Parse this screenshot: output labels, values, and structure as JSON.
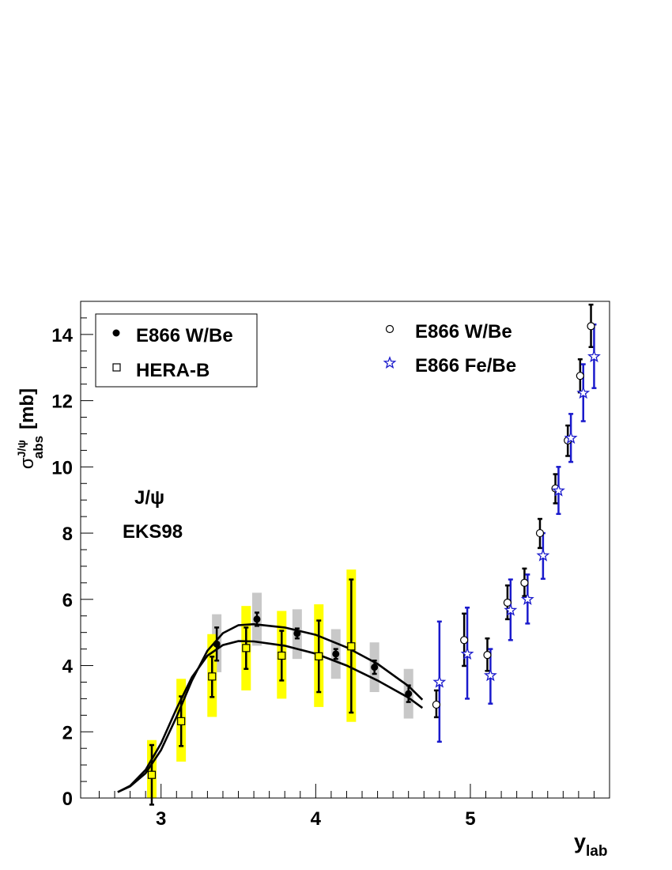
{
  "chart_data": {
    "type": "scatter",
    "xlabel": "y",
    "xlabel_sub": "lab",
    "ylabel_sym": "σ",
    "ylabel_sup": "J/ψ",
    "ylabel_sub": "abs",
    "ylabel_unit": "[mb]",
    "xlim": [
      2.48,
      5.9
    ],
    "ylim": [
      0,
      15
    ],
    "xticks": [
      3,
      4,
      5
    ],
    "yticks": [
      0,
      2,
      4,
      6,
      8,
      10,
      12,
      14
    ],
    "annotation_line1": "J/ψ",
    "annotation_line2": "EKS98",
    "legend_left": [
      {
        "marker": "filled-circle",
        "label": "E866 W/Be"
      },
      {
        "marker": "open-square",
        "label": "HERA-B"
      }
    ],
    "legend_right": [
      {
        "marker": "open-circle",
        "label": "E866 W/Be"
      },
      {
        "marker": "open-star",
        "label": "E866 Fe/Be"
      }
    ],
    "series": [
      {
        "name": "E866 W/Be",
        "marker": "filled-circle",
        "color": "#000000",
        "points": [
          {
            "x": 3.36,
            "y": 4.65,
            "err": 0.5,
            "sys_lo": 3.8,
            "sys_hi": 5.55
          },
          {
            "x": 3.62,
            "y": 5.4,
            "err": 0.2,
            "sys_lo": 4.6,
            "sys_hi": 6.2
          },
          {
            "x": 3.88,
            "y": 4.97,
            "err": 0.15,
            "sys_lo": 4.2,
            "sys_hi": 5.7
          },
          {
            "x": 4.13,
            "y": 4.35,
            "err": 0.15,
            "sys_lo": 3.6,
            "sys_hi": 5.1
          },
          {
            "x": 4.38,
            "y": 3.95,
            "err": 0.2,
            "sys_lo": 3.2,
            "sys_hi": 4.7
          },
          {
            "x": 4.6,
            "y": 3.15,
            "err": 0.25,
            "sys_lo": 2.4,
            "sys_hi": 3.9
          }
        ]
      },
      {
        "name": "HERA-B",
        "marker": "open-square",
        "color": "#000000",
        "points": [
          {
            "x": 2.94,
            "y": 0.7,
            "err_lo": 0.9,
            "err_hi": 0.9,
            "sys_lo": 0,
            "sys_hi": 1.75
          },
          {
            "x": 3.13,
            "y": 2.32,
            "err_lo": 0.75,
            "err_hi": 0.75,
            "sys_lo": 1.1,
            "sys_hi": 3.6
          },
          {
            "x": 3.33,
            "y": 3.67,
            "err_lo": 0.62,
            "err_hi": 0.6,
            "sys_lo": 2.45,
            "sys_hi": 4.95
          },
          {
            "x": 3.55,
            "y": 4.53,
            "err_lo": 0.63,
            "err_hi": 0.62,
            "sys_lo": 3.25,
            "sys_hi": 5.8
          },
          {
            "x": 3.78,
            "y": 4.3,
            "err_lo": 0.75,
            "err_hi": 0.75,
            "sys_lo": 3.0,
            "sys_hi": 5.65
          },
          {
            "x": 4.02,
            "y": 4.28,
            "err_lo": 1.08,
            "err_hi": 1.08,
            "sys_lo": 2.75,
            "sys_hi": 5.85
          },
          {
            "x": 4.23,
            "y": 4.58,
            "err_lo": 2.0,
            "err_hi": 2.02,
            "sys_lo": 2.3,
            "sys_hi": 6.9
          }
        ]
      },
      {
        "name": "E866 W/Be",
        "marker": "open-circle",
        "color": "#000000",
        "points": [
          {
            "x": 4.78,
            "y": 2.82,
            "err_lo": 0.38,
            "err_hi": 0.43
          },
          {
            "x": 4.96,
            "y": 4.77,
            "err_lo": 0.78,
            "err_hi": 0.8
          },
          {
            "x": 5.11,
            "y": 4.32,
            "err_lo": 0.48,
            "err_hi": 0.5
          },
          {
            "x": 5.24,
            "y": 5.9,
            "err_lo": 0.5,
            "err_hi": 0.52
          },
          {
            "x": 5.35,
            "y": 6.5,
            "err_lo": 0.4,
            "err_hi": 0.43
          },
          {
            "x": 5.45,
            "y": 8.0,
            "err_lo": 0.45,
            "err_hi": 0.43
          },
          {
            "x": 5.55,
            "y": 9.35,
            "err_lo": 0.45,
            "err_hi": 0.43
          },
          {
            "x": 5.63,
            "y": 10.8,
            "err_lo": 0.47,
            "err_hi": 0.45
          },
          {
            "x": 5.71,
            "y": 12.75,
            "err_lo": 0.5,
            "err_hi": 0.5
          },
          {
            "x": 5.78,
            "y": 14.25,
            "err_lo": 0.63,
            "err_hi": 0.65
          }
        ]
      },
      {
        "name": "E866 Fe/Be",
        "marker": "open-star",
        "color": "#1a1acc",
        "points": [
          {
            "x": 4.8,
            "y": 3.5,
            "err_lo": 1.8,
            "err_hi": 1.83
          },
          {
            "x": 4.98,
            "y": 4.35,
            "err_lo": 1.35,
            "err_hi": 1.4
          },
          {
            "x": 5.13,
            "y": 3.7,
            "err_lo": 0.85,
            "err_hi": 0.8
          },
          {
            "x": 5.26,
            "y": 5.67,
            "err_lo": 0.9,
            "err_hi": 0.93
          },
          {
            "x": 5.37,
            "y": 6.0,
            "err_lo": 0.73,
            "err_hi": 0.75
          },
          {
            "x": 5.47,
            "y": 7.32,
            "err_lo": 0.7,
            "err_hi": 0.68
          },
          {
            "x": 5.57,
            "y": 9.28,
            "err_lo": 0.7,
            "err_hi": 0.72
          },
          {
            "x": 5.65,
            "y": 10.87,
            "err_lo": 0.72,
            "err_hi": 0.73
          },
          {
            "x": 5.73,
            "y": 12.23,
            "err_lo": 0.85,
            "err_hi": 0.87
          },
          {
            "x": 5.8,
            "y": 13.33,
            "err_lo": 0.95,
            "err_hi": 0.97
          }
        ]
      }
    ],
    "curves": [
      {
        "x": [
          2.72,
          2.8,
          2.9,
          3.0,
          3.1,
          3.2,
          3.3,
          3.4,
          3.5,
          3.6,
          3.8,
          4.0,
          4.2,
          4.4,
          4.6,
          4.69
        ],
        "y": [
          0.18,
          0.35,
          0.75,
          1.45,
          2.45,
          3.55,
          4.45,
          4.98,
          5.22,
          5.25,
          5.15,
          4.93,
          4.55,
          4.05,
          3.38,
          2.97
        ]
      },
      {
        "x": [
          2.72,
          2.8,
          2.9,
          3.0,
          3.1,
          3.2,
          3.3,
          3.4,
          3.5,
          3.6,
          3.8,
          4.0,
          4.2,
          4.4,
          4.6,
          4.69
        ],
        "y": [
          0.18,
          0.37,
          0.85,
          1.65,
          2.7,
          3.65,
          4.3,
          4.62,
          4.74,
          4.73,
          4.6,
          4.36,
          4.0,
          3.55,
          3.03,
          2.72
        ]
      }
    ]
  },
  "colors": {
    "herab_sys": "#ffff00",
    "e866_sys": "#c8c8c8",
    "star": "#1a1acc",
    "ink": "#000000"
  }
}
